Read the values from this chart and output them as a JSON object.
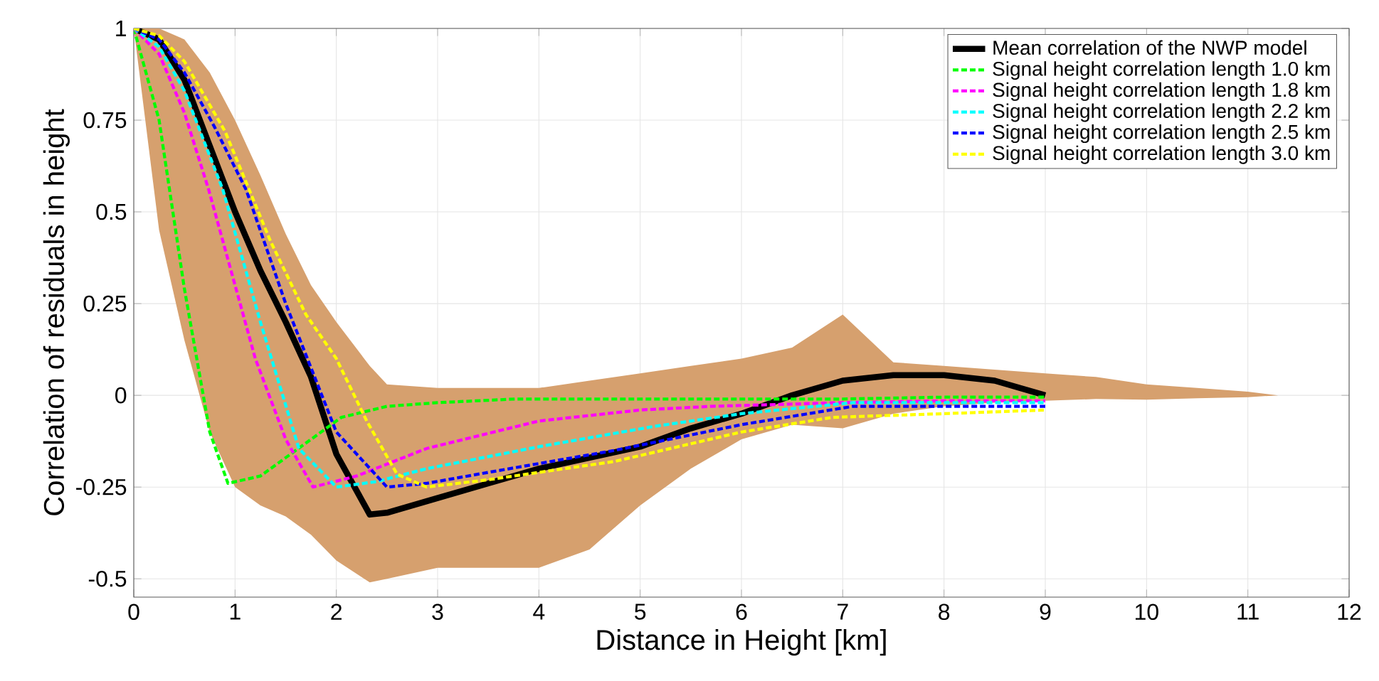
{
  "chart_data": {
    "type": "line",
    "xlabel": "Distance in Height [km]",
    "ylabel": "Correlation of residuals in height",
    "xlim": [
      0,
      12
    ],
    "xticks": [
      0,
      1,
      2,
      3,
      4,
      5,
      6,
      7,
      8,
      9,
      10,
      11,
      12
    ],
    "ylim": [
      -0.55,
      1
    ],
    "yticks": [
      -0.5,
      -0.25,
      0,
      0.25,
      0.5,
      0.75,
      1
    ],
    "grid": true,
    "legend": "top right",
    "series": [
      {
        "name": "Mean correlation of the NWP model",
        "color": "#000000",
        "line_style": "solid",
        "x": [
          0,
          0.25,
          0.5,
          0.75,
          1,
          1.25,
          1.5,
          1.75,
          2,
          2.33,
          2.5,
          3,
          3.5,
          4,
          4.5,
          5,
          5.5,
          6,
          6.5,
          7,
          7.5,
          8,
          8.5,
          9,
          9.5,
          10,
          10.5,
          11,
          11.3
        ],
        "values": [
          1,
          0.97,
          0.86,
          0.68,
          0.5,
          0.34,
          0.2,
          0.05,
          -0.16,
          -0.325,
          -0.32,
          -0.28,
          -0.24,
          -0.2,
          -0.17,
          -0.14,
          -0.09,
          -0.05,
          0.0,
          0.04,
          0.055,
          0.055,
          0.04,
          0.0,
          null,
          null,
          null,
          null,
          null
        ],
        "upper": [
          1,
          1,
          0.97,
          0.88,
          0.75,
          0.6,
          0.44,
          0.3,
          0.2,
          0.08,
          0.03,
          0.02,
          0.02,
          0.02,
          0.04,
          0.06,
          0.08,
          0.1,
          0.13,
          0.22,
          0.09,
          0.08,
          0.07,
          0.06,
          0.05,
          0.03,
          0.02,
          0.01,
          0
        ],
        "lower": [
          1,
          0.45,
          0.15,
          -0.1,
          -0.25,
          -0.3,
          -0.33,
          -0.38,
          -0.45,
          -0.51,
          -0.5,
          -0.47,
          -0.47,
          -0.47,
          -0.42,
          -0.3,
          -0.2,
          -0.12,
          -0.08,
          -0.09,
          -0.05,
          -0.03,
          -0.02,
          -0.015,
          -0.01,
          -0.012,
          -0.008,
          -0.005,
          0
        ]
      },
      {
        "name": "Signal height correlation length 1.0 km",
        "color": "#00ff00",
        "line_style": "dashed",
        "x": [
          0,
          0.25,
          0.5,
          0.75,
          0.93,
          1.25,
          1.5,
          2.05,
          2.5,
          3,
          3.77,
          5,
          6,
          7,
          8,
          9
        ],
        "values": [
          1,
          0.75,
          0.29,
          -0.1,
          -0.24,
          -0.22,
          -0.17,
          -0.06,
          -0.03,
          -0.02,
          -0.01,
          -0.01,
          -0.01,
          -0.01,
          -0.005,
          -0.005
        ]
      },
      {
        "name": "Signal height correlation length 1.8 km",
        "color": "#ff00ff",
        "line_style": "dashed",
        "x": [
          0,
          0.25,
          0.5,
          0.74,
          1.2,
          1.5,
          1.77,
          2.2,
          2.89,
          4,
          5,
          5.7,
          7,
          8,
          9
        ],
        "values": [
          1,
          0.93,
          0.77,
          0.56,
          0.1,
          -0.12,
          -0.25,
          -0.22,
          -0.145,
          -0.07,
          -0.04,
          -0.03,
          -0.02,
          -0.015,
          -0.015
        ]
      },
      {
        "name": "Signal height correlation length 2.2 km",
        "color": "#00ffff",
        "line_style": "dashed",
        "x": [
          0,
          0.25,
          0.5,
          0.88,
          1.25,
          1.63,
          2.0,
          2.4,
          2.89,
          4,
          5.13,
          6,
          7.1,
          8,
          9
        ],
        "values": [
          1,
          0.95,
          0.83,
          0.56,
          0.2,
          -0.145,
          -0.25,
          -0.235,
          -0.2,
          -0.14,
          -0.085,
          -0.05,
          -0.02,
          -0.02,
          -0.02
        ]
      },
      {
        "name": "Signal height correlation length 2.5 km",
        "color": "#0000ff",
        "line_style": "dashed",
        "x": [
          0,
          0.25,
          0.5,
          0.8,
          1.11,
          1.5,
          2.0,
          2.5,
          2.89,
          3.5,
          4.75,
          6,
          7.1,
          8,
          9
        ],
        "values": [
          1,
          0.97,
          0.88,
          0.73,
          0.56,
          0.25,
          -0.1,
          -0.25,
          -0.24,
          -0.21,
          -0.15,
          -0.08,
          -0.03,
          -0.03,
          -0.03
        ]
      },
      {
        "name": "Signal height correlation length 3.0 km",
        "color": "#ffff00",
        "line_style": "dashed",
        "x": [
          0,
          0.25,
          0.5,
          0.9,
          1.35,
          1.7,
          2.0,
          2.3,
          2.6,
          2.89,
          3.5,
          4.75,
          6,
          6.9,
          8,
          9
        ],
        "values": [
          1,
          0.98,
          0.91,
          0.72,
          0.42,
          0.22,
          0.1,
          -0.07,
          -0.215,
          -0.25,
          -0.23,
          -0.18,
          -0.1,
          -0.06,
          -0.05,
          -0.04
        ]
      }
    ]
  }
}
